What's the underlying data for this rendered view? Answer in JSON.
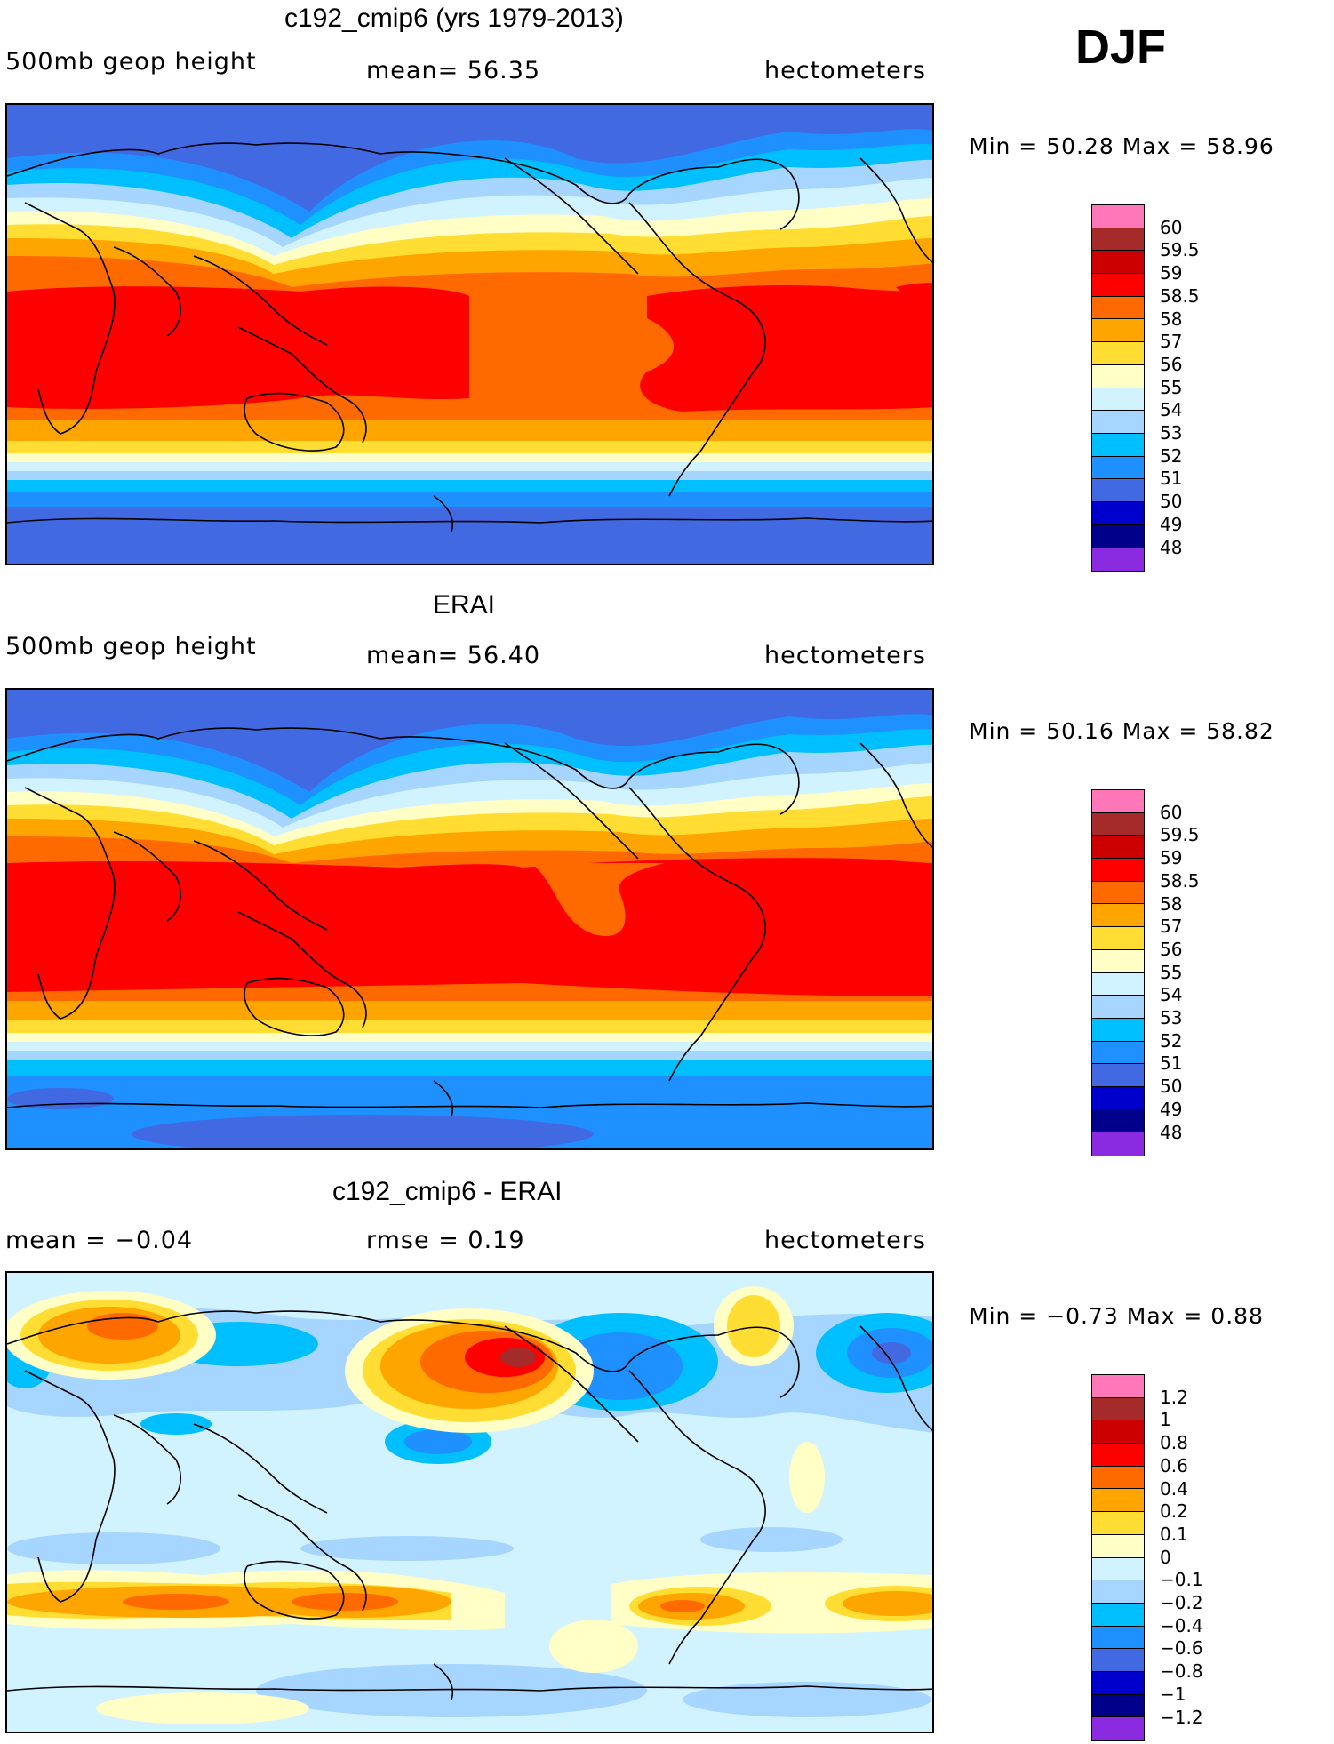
{
  "figure": {
    "season": "DJF"
  },
  "panels": [
    {
      "title": "c192_cmip6 (yrs 1979-2013)",
      "variable": "500mb geop height",
      "stat1": "mean=  56.35",
      "stat2": "",
      "units": "hectometers",
      "minmax": "Min =  50.28 Max =  58.96"
    },
    {
      "title": "ERAI",
      "variable": "500mb geop height",
      "stat1": "mean=  56.40",
      "stat2": "",
      "units": "hectometers",
      "minmax": "Min =  50.16 Max =  58.82"
    },
    {
      "title": "c192_cmip6 - ERAI",
      "variable": "",
      "stat1": "mean =  −0.04",
      "stat2": "rmse =   0.19",
      "units": "hectometers",
      "minmax": "Min =  −0.73 Max =   0.88"
    }
  ],
  "colorbars": {
    "height": {
      "colors": [
        "#ff77b8",
        "#a52a2a",
        "#cc0000",
        "#ff0000",
        "#ff6a00",
        "#ffa500",
        "#ffdd33",
        "#ffffc6",
        "#d1f2ff",
        "#a6d6ff",
        "#00bfff",
        "#1e90ff",
        "#4169e1",
        "#0000cd",
        "#00008b",
        "#8a2be2"
      ],
      "labels": [
        "60",
        "59.5",
        "59",
        "58.5",
        "58",
        "57",
        "56",
        "55",
        "54",
        "53",
        "52",
        "51",
        "50",
        "49",
        "48"
      ]
    },
    "diff": {
      "colors": [
        "#ff77b8",
        "#a52a2a",
        "#cc0000",
        "#ff0000",
        "#ff6a00",
        "#ffa500",
        "#ffdd33",
        "#ffffc6",
        "#d1f2ff",
        "#a6d6ff",
        "#00bfff",
        "#1e90ff",
        "#4169e1",
        "#0000cd",
        "#00008b",
        "#8a2be2"
      ],
      "labels": [
        "1.2",
        "1",
        "0.8",
        "0.6",
        "0.4",
        "0.2",
        "0.1",
        "0",
        "−0.1",
        "−0.2",
        "−0.4",
        "−0.6",
        "−0.8",
        "−1",
        "−1.2"
      ]
    }
  }
}
